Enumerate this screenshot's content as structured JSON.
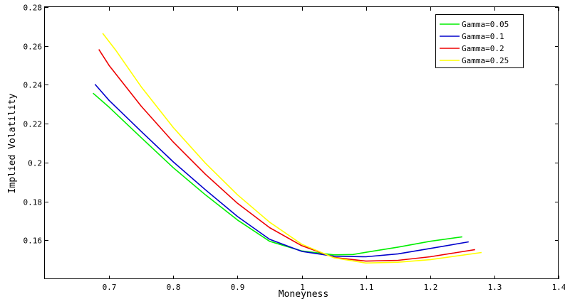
{
  "chart_data": {
    "type": "line",
    "title": "",
    "xlabel": "Moneyness",
    "ylabel": "Implied Volatility",
    "xlim": [
      0.6,
      1.4
    ],
    "ylim": [
      0.14,
      0.28
    ],
    "xticks": [
      0.7,
      0.8,
      0.9,
      1.0,
      1.1,
      1.2,
      1.3,
      1.4
    ],
    "xtick_labels": [
      "0.7",
      "0.8",
      "0.9",
      "1",
      "1.1",
      "1.2",
      "1.3",
      "1.4"
    ],
    "yticks": [
      0.16,
      0.18,
      0.2,
      0.22,
      0.24,
      0.26,
      0.28
    ],
    "ytick_labels": [
      "0.16",
      "0.18",
      "0.2",
      "0.22",
      "0.24",
      "0.26",
      "0.28"
    ],
    "grid": false,
    "legend_position": "top-right",
    "series": [
      {
        "name": "Gamma=0.05",
        "color": "#00ee00",
        "x": [
          0.675,
          0.7,
          0.75,
          0.8,
          0.85,
          0.9,
          0.95,
          1.0,
          1.05,
          1.08,
          1.1,
          1.15,
          1.2,
          1.25
        ],
        "y": [
          0.2357,
          0.2285,
          0.2128,
          0.1973,
          0.1834,
          0.1704,
          0.1595,
          0.1545,
          0.1525,
          0.1527,
          0.1538,
          0.1565,
          0.1595,
          0.1618
        ]
      },
      {
        "name": "Gamma=0.1",
        "color": "#0000cc",
        "x": [
          0.678,
          0.7,
          0.75,
          0.8,
          0.85,
          0.9,
          0.95,
          1.0,
          1.05,
          1.1,
          1.15,
          1.2,
          1.26
        ],
        "y": [
          0.2403,
          0.232,
          0.216,
          0.2003,
          0.186,
          0.1722,
          0.1605,
          0.1543,
          0.1518,
          0.1515,
          0.153,
          0.1558,
          0.1592
        ]
      },
      {
        "name": "Gamma=0.2",
        "color": "#ee0000",
        "x": [
          0.684,
          0.7,
          0.75,
          0.8,
          0.85,
          0.9,
          0.95,
          1.0,
          1.05,
          1.1,
          1.15,
          1.2,
          1.27
        ],
        "y": [
          0.2582,
          0.25,
          0.229,
          0.2105,
          0.194,
          0.179,
          0.1665,
          0.1572,
          0.1512,
          0.1493,
          0.1497,
          0.1515,
          0.1552
        ]
      },
      {
        "name": "Gamma=0.25",
        "color": "#ffff00",
        "x": [
          0.69,
          0.71,
          0.75,
          0.8,
          0.85,
          0.9,
          0.95,
          1.0,
          1.05,
          1.1,
          1.15,
          1.2,
          1.28
        ],
        "y": [
          0.2665,
          0.258,
          0.239,
          0.218,
          0.1997,
          0.1834,
          0.1693,
          0.158,
          0.151,
          0.1483,
          0.1487,
          0.15,
          0.1537
        ]
      }
    ]
  }
}
